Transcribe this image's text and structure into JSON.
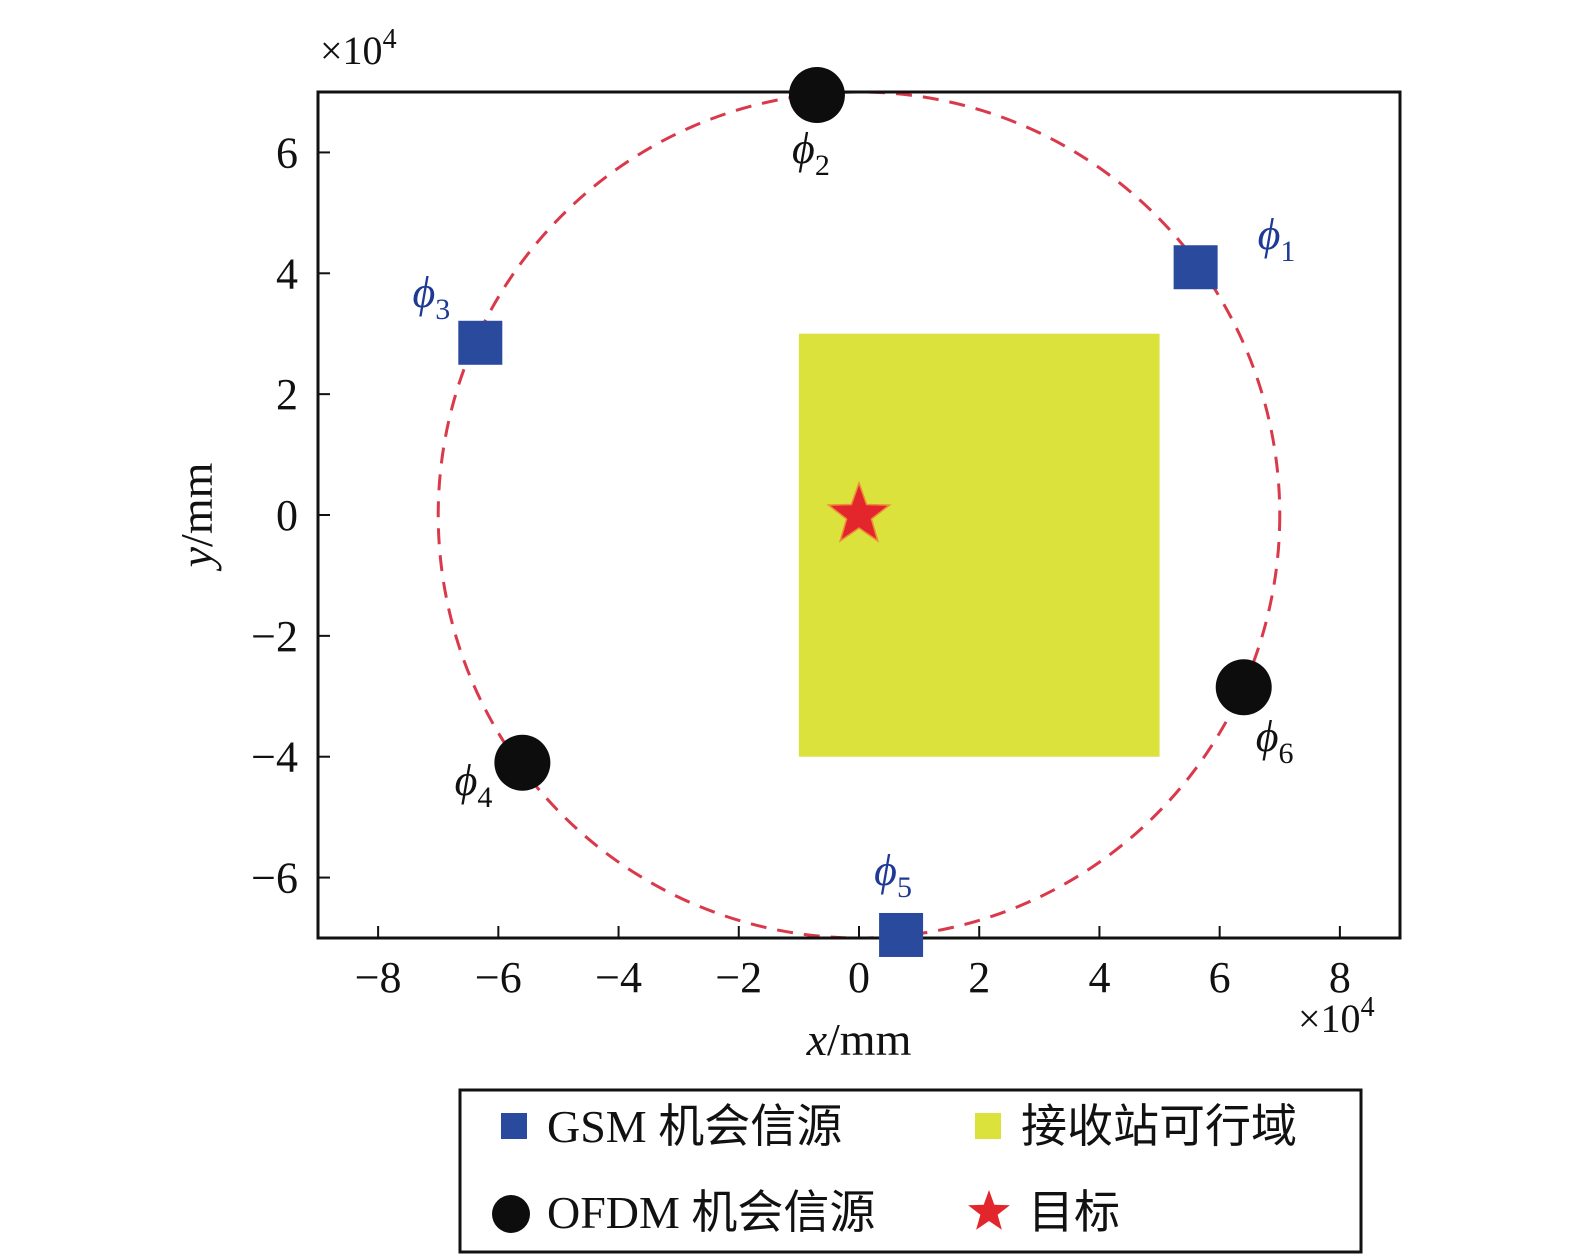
{
  "chart_data": {
    "type": "scatter",
    "xlabel_var": "x",
    "xlabel_unit": "/mm",
    "ylabel_var": "y",
    "ylabel_unit": "/mm",
    "x_multiplier": "×10",
    "x_multiplier_exp": "4",
    "y_multiplier": "×10",
    "y_multiplier_exp": "4",
    "xlim": [
      -9,
      9
    ],
    "ylim": [
      -7,
      7
    ],
    "x_ticks": [
      -8,
      -6,
      -4,
      -2,
      0,
      2,
      4,
      6,
      8
    ],
    "x_tick_labels": [
      "−8",
      "−6",
      "−4",
      "−2",
      "0",
      "2",
      "4",
      "6",
      "8"
    ],
    "y_ticks": [
      -6,
      -4,
      -2,
      0,
      2,
      4,
      6
    ],
    "y_tick_labels": [
      "−6",
      "−4",
      "−2",
      "0",
      "2",
      "4",
      "6"
    ],
    "grid": false,
    "circle": {
      "center": [
        0,
        0
      ],
      "radius": 7,
      "color": "#d9394a",
      "style": "dashed"
    },
    "feasible_region": {
      "x": [
        -1,
        5
      ],
      "y": [
        -4,
        3
      ],
      "color": "#dbe23b"
    },
    "target": {
      "x": 0,
      "y": 0,
      "color": "#e3262b"
    },
    "sources": [
      {
        "label": "ϕ",
        "sub": "1",
        "type": "GSM",
        "x": 5.6,
        "y": 4.1
      },
      {
        "label": "ϕ",
        "sub": "2",
        "type": "OFDM",
        "x": -0.7,
        "y": 6.95
      },
      {
        "label": "ϕ",
        "sub": "3",
        "type": "GSM",
        "x": -6.3,
        "y": 2.85
      },
      {
        "label": "ϕ",
        "sub": "4",
        "type": "OFDM",
        "x": -5.6,
        "y": -4.1
      },
      {
        "label": "ϕ",
        "sub": "5",
        "type": "GSM",
        "x": 0.7,
        "y": -6.95
      },
      {
        "label": "ϕ",
        "sub": "6",
        "type": "OFDM",
        "x": 6.4,
        "y": -2.85
      }
    ],
    "legend": {
      "placement": "bottom",
      "entries": [
        {
          "key": "gsm",
          "text": "GSM 机会信源"
        },
        {
          "key": "region",
          "text": "接收站可行域"
        },
        {
          "key": "ofdm",
          "text": "OFDM 机会信源"
        },
        {
          "key": "target",
          "text": "目标"
        }
      ]
    },
    "colors": {
      "gsm": "#2a4a9e",
      "gsm_label": "#1f3a94",
      "ofdm": "#0d0d0d",
      "ofdm_label": "#111111"
    }
  }
}
